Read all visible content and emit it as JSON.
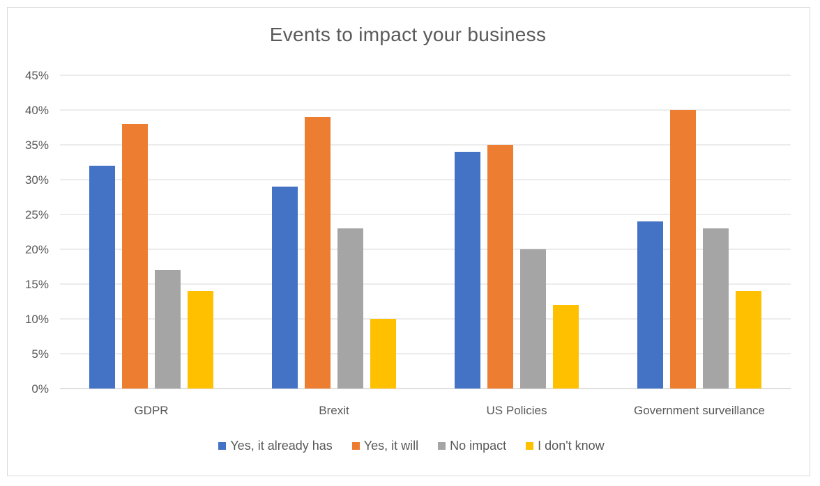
{
  "chart_data": {
    "type": "bar",
    "title": "Events to impact your business",
    "categories": [
      "GDPR",
      "Brexit",
      "US Policies",
      "Government surveillance"
    ],
    "series": [
      {
        "name": "Yes, it already has",
        "color": "#4472c4",
        "values": [
          32,
          29,
          34,
          24
        ]
      },
      {
        "name": "Yes, it will",
        "color": "#ed7d31",
        "values": [
          38,
          39,
          35,
          40
        ]
      },
      {
        "name": "No impact",
        "color": "#a5a5a5",
        "values": [
          17,
          23,
          20,
          23
        ]
      },
      {
        "name": "I don't know",
        "color": "#ffc000",
        "values": [
          14,
          10,
          12,
          14
        ]
      }
    ],
    "y_ticks": [
      "0%",
      "5%",
      "10%",
      "15%",
      "20%",
      "25%",
      "30%",
      "35%",
      "40%",
      "45%"
    ],
    "ylim": [
      0,
      45
    ],
    "grid": true,
    "legend_position": "bottom"
  }
}
